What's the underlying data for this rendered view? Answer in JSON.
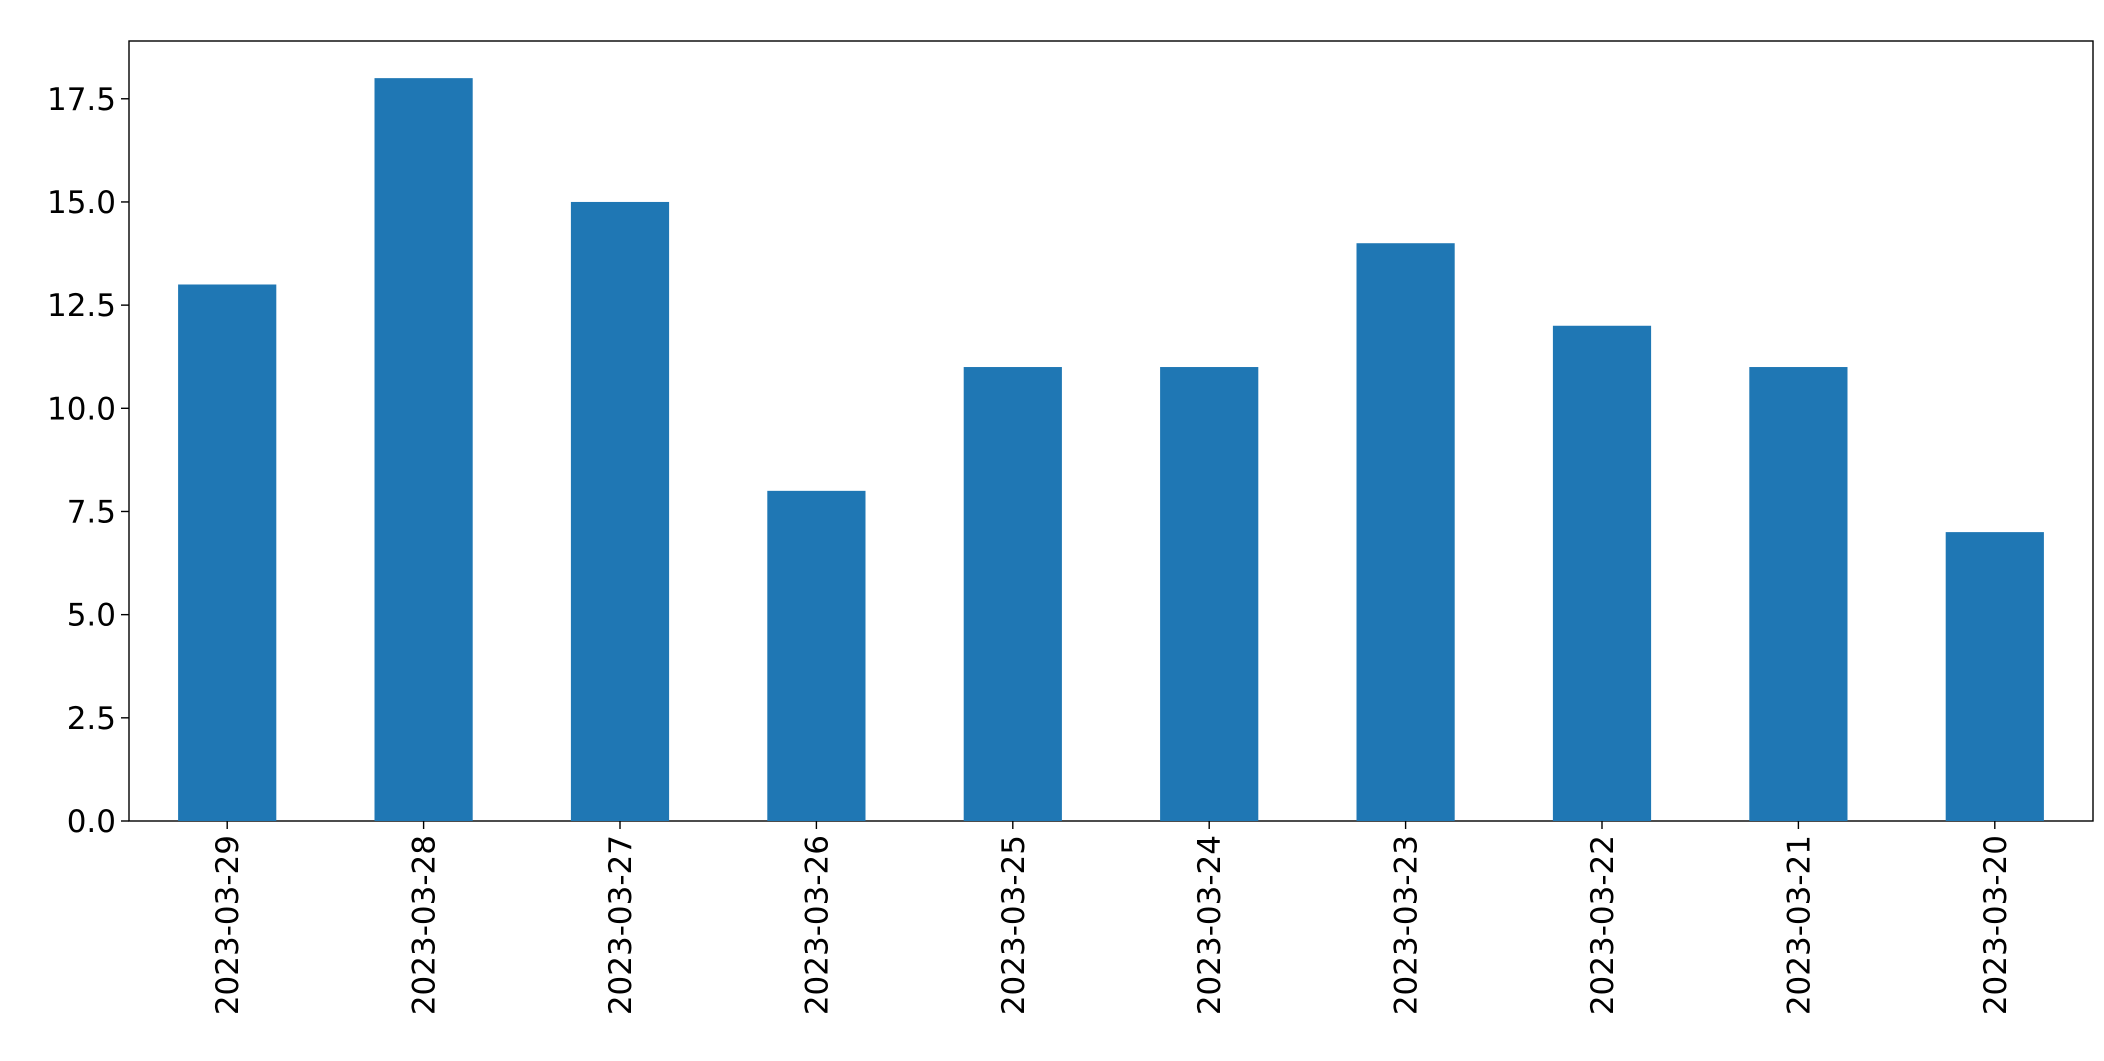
{
  "chart_data": {
    "type": "bar",
    "categories": [
      "2023-03-29",
      "2023-03-28",
      "2023-03-27",
      "2023-03-26",
      "2023-03-25",
      "2023-03-24",
      "2023-03-23",
      "2023-03-22",
      "2023-03-21",
      "2023-03-20"
    ],
    "values": [
      13,
      18,
      15,
      8,
      11,
      11,
      14,
      12,
      11,
      7
    ],
    "color": "#1f77b4",
    "ylim": [
      0,
      18.9
    ],
    "yticks": [
      {
        "value": 0,
        "label": "0.0"
      },
      2.5,
      {
        "value": 5,
        "label": "5.0"
      },
      7.5,
      {
        "value": 10,
        "label": "10.0"
      },
      12.5,
      {
        "value": 15,
        "label": "15.0"
      },
      17.5
    ],
    "grid": false
  }
}
